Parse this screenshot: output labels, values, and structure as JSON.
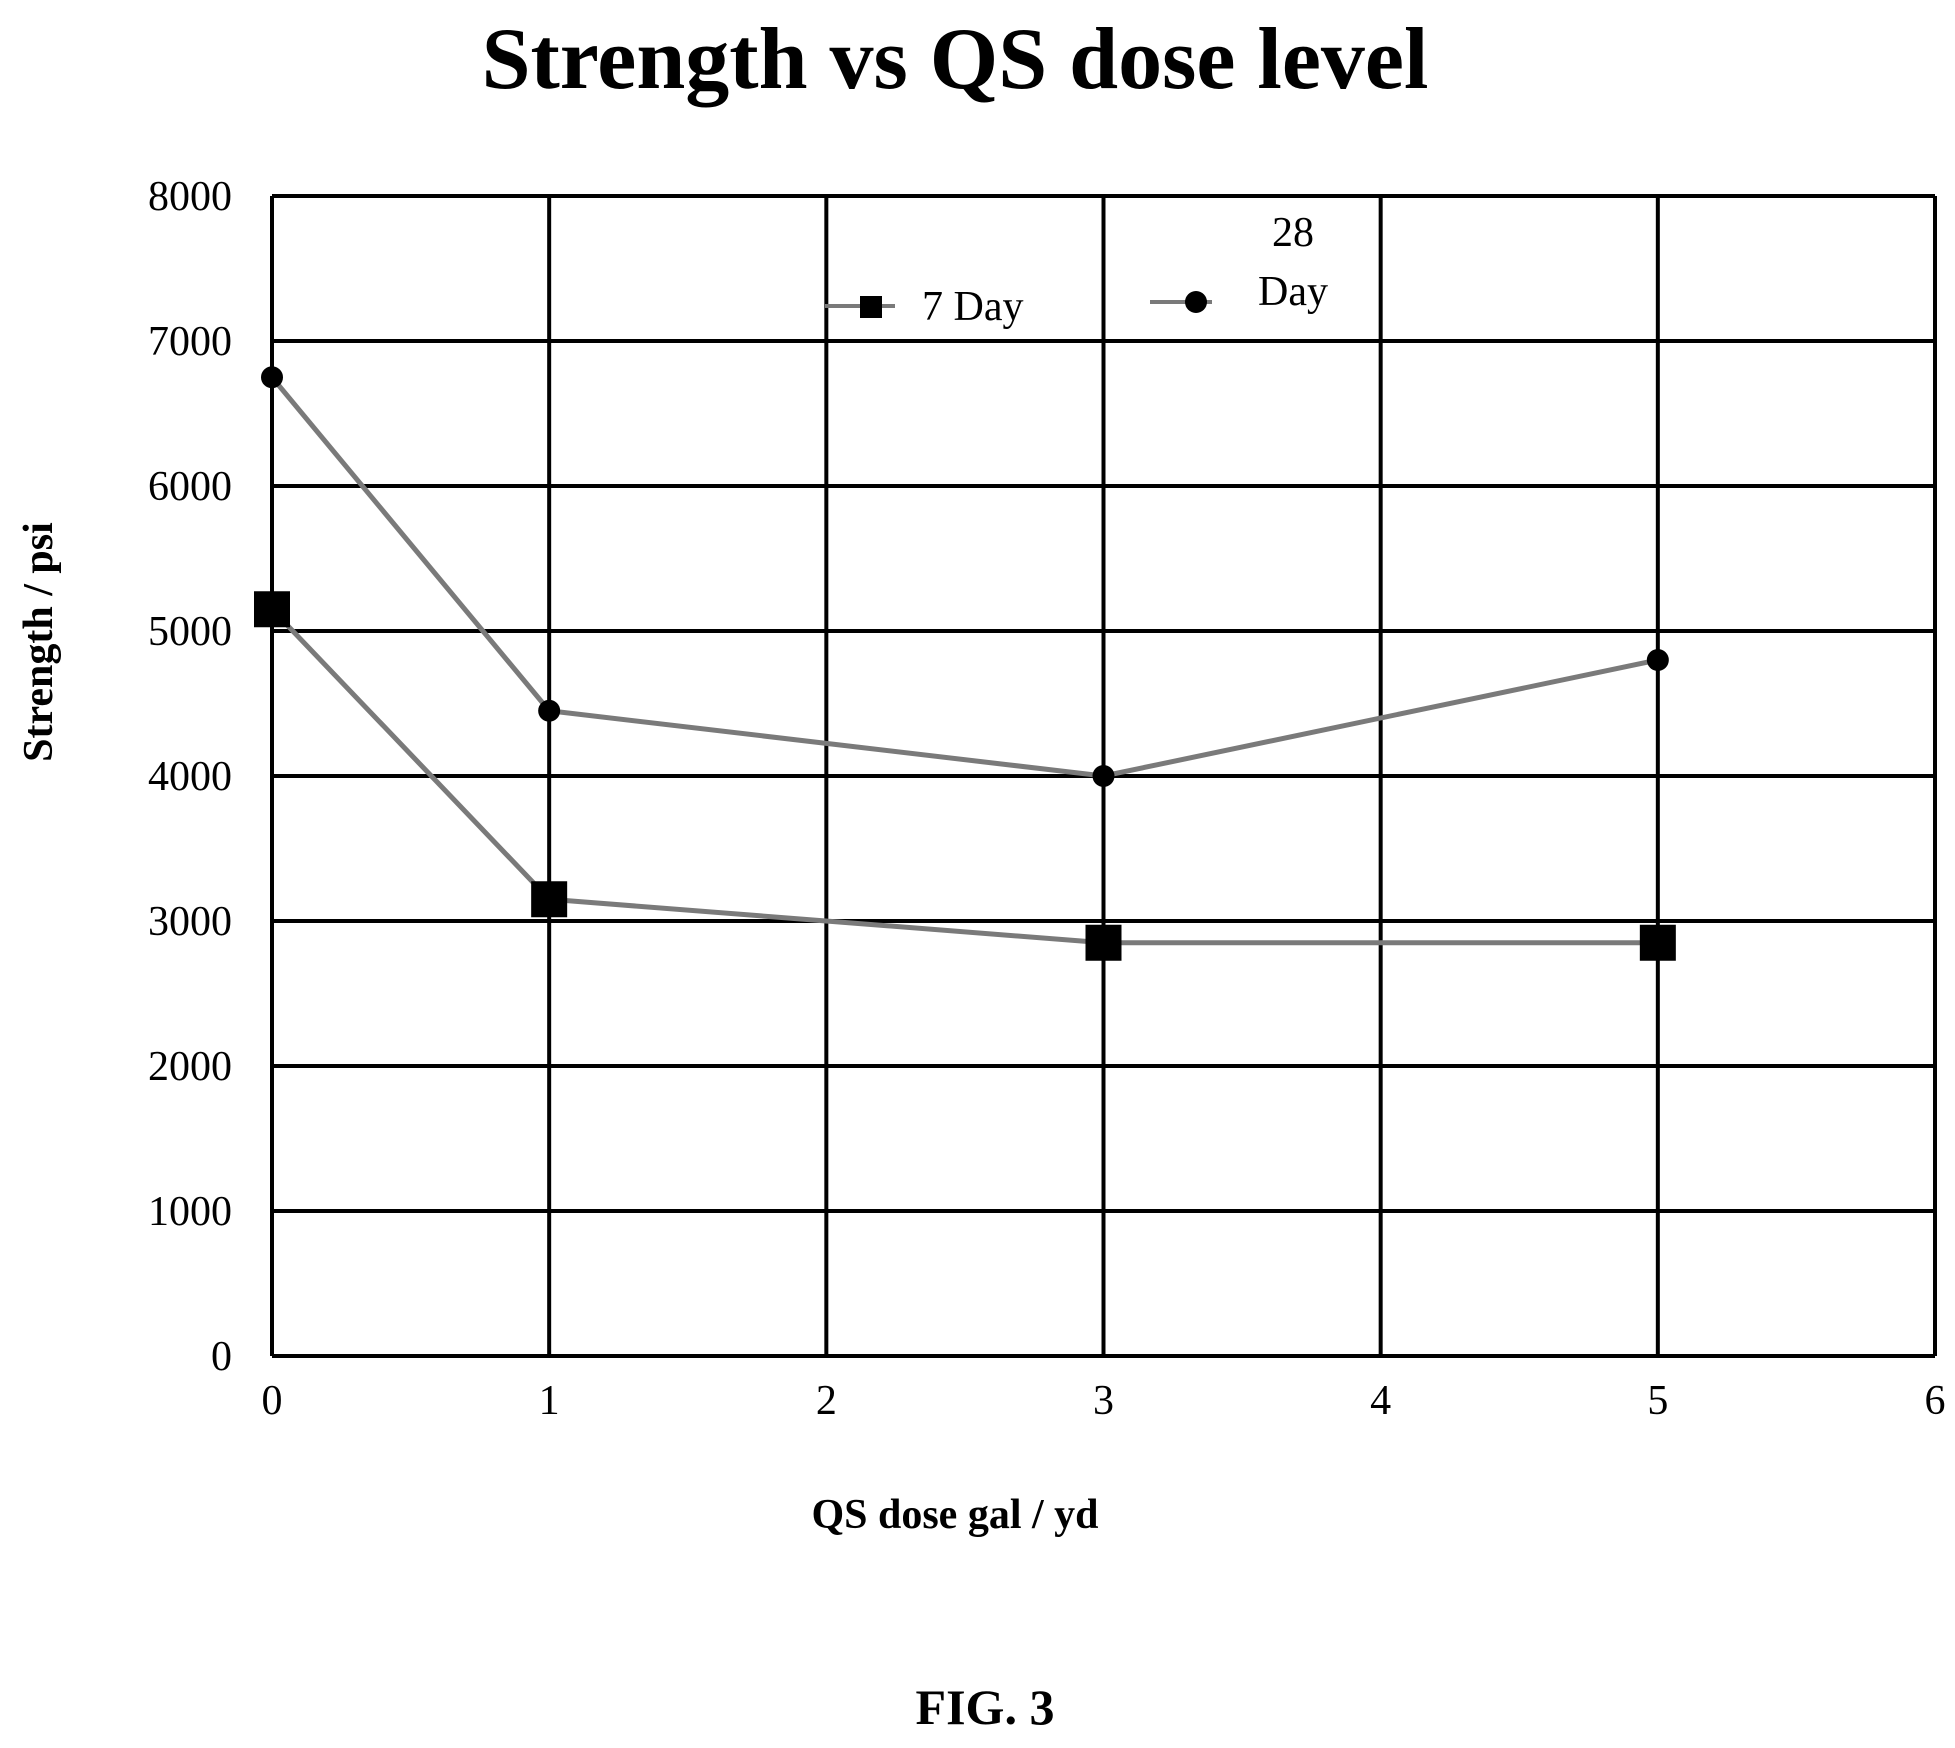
{
  "chart_data": {
    "type": "line",
    "title": "Strength vs QS dose level",
    "xlabel": "QS dose gal / yd",
    "ylabel": "Strength / psi",
    "xlim": [
      0,
      6
    ],
    "ylim": [
      0,
      8000
    ],
    "x_ticks": [
      "0",
      "1",
      "2",
      "3",
      "4",
      "5",
      "6"
    ],
    "y_ticks": [
      "0",
      "1000",
      "2000",
      "3000",
      "4000",
      "5000",
      "6000",
      "7000",
      "8000"
    ],
    "grid": true,
    "legend_position": "top-center",
    "series": [
      {
        "name": "7 Day",
        "marker": "square",
        "x": [
          0,
          1,
          3,
          5
        ],
        "y": [
          5150,
          3150,
          2850,
          2850
        ]
      },
      {
        "name_lines": [
          "28",
          "Day"
        ],
        "marker": "circle",
        "x": [
          0,
          1,
          3,
          5
        ],
        "y": [
          6750,
          4450,
          4000,
          4800
        ]
      }
    ],
    "line_color": "#7a7a7a",
    "marker_color": "#000000"
  },
  "figure_label": "FIG. 3"
}
